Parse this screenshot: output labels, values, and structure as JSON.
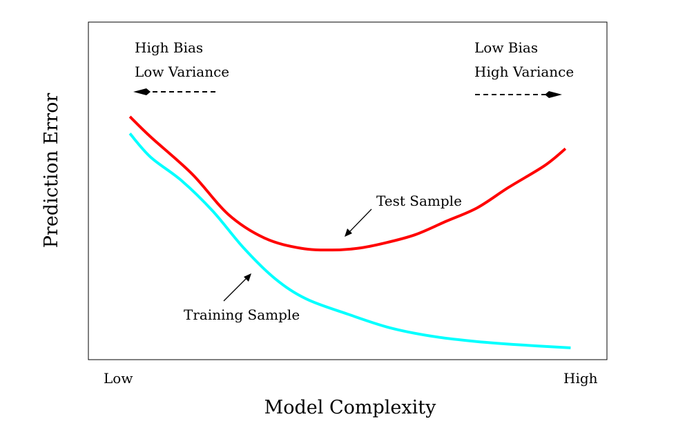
{
  "chart_data": {
    "type": "line",
    "title": "",
    "xlabel": "Model Complexity",
    "ylabel": "Prediction Error",
    "xlim": [
      0,
      1
    ],
    "ylim": [
      0,
      1
    ],
    "x_ticks": [
      "Low",
      "High"
    ],
    "grid": false,
    "legend": "none",
    "series": [
      {
        "name": "Test Sample",
        "color": "#ff0000",
        "x": [
          0.08,
          0.12,
          0.2,
          0.27,
          0.34,
          0.41,
          0.47,
          0.52,
          0.57,
          0.63,
          0.69,
          0.75,
          0.81,
          0.88,
          0.92
        ],
        "y": [
          0.72,
          0.66,
          0.55,
          0.43,
          0.36,
          0.33,
          0.325,
          0.33,
          0.345,
          0.37,
          0.41,
          0.45,
          0.51,
          0.575,
          0.625
        ]
      },
      {
        "name": "Training Sample",
        "color": "#00ffff",
        "x": [
          0.08,
          0.12,
          0.18,
          0.24,
          0.3,
          0.36,
          0.42,
          0.5,
          0.58,
          0.66,
          0.74,
          0.82,
          0.93
        ],
        "y": [
          0.67,
          0.6,
          0.53,
          0.44,
          0.33,
          0.24,
          0.18,
          0.135,
          0.095,
          0.07,
          0.055,
          0.045,
          0.035
        ]
      }
    ],
    "annotations": {
      "left_label_1": "High Bias",
      "left_label_2": "Low Variance",
      "right_label_1": "Low Bias",
      "right_label_2": "High Variance",
      "test_label": "Test Sample",
      "training_label": "Training Sample"
    }
  }
}
